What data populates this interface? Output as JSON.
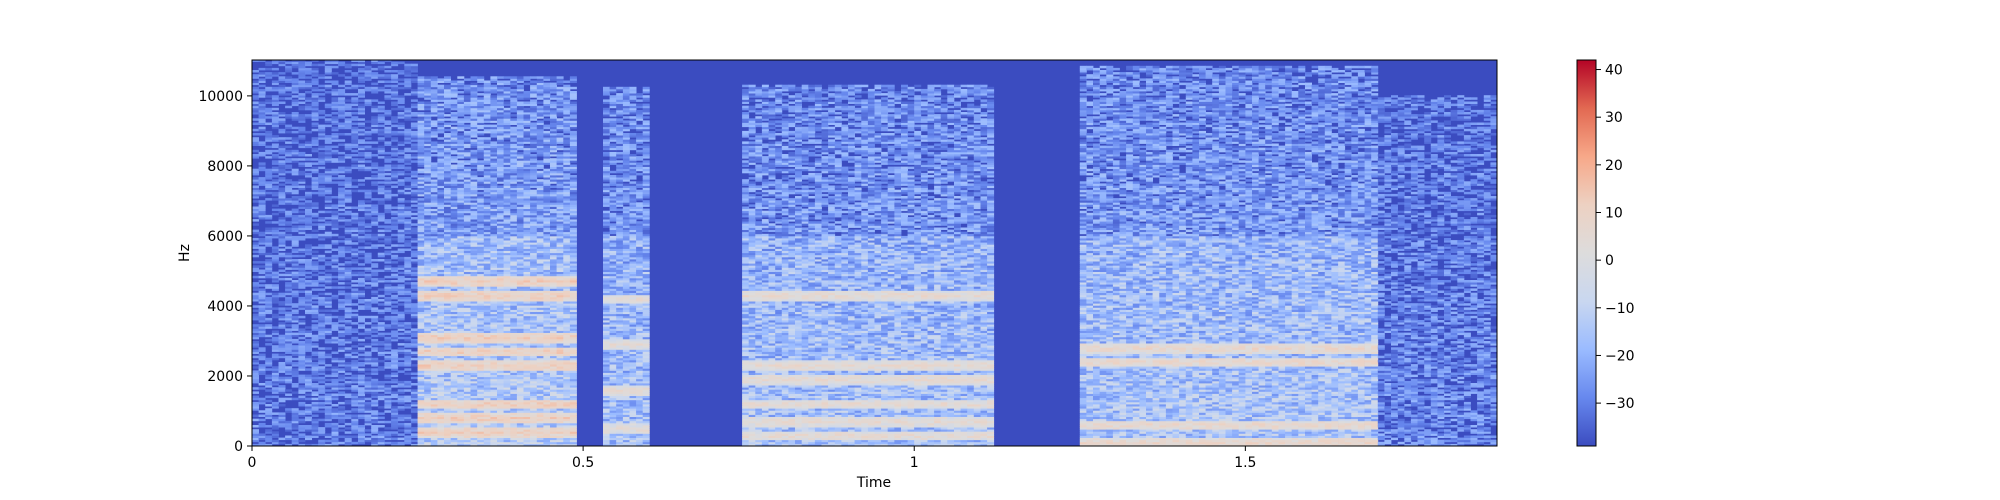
{
  "chart_data": {
    "type": "heatmap",
    "title": "",
    "xlabel": "Time",
    "ylabel": "Hz",
    "xlim": [
      0,
      1.88
    ],
    "ylim": [
      0,
      11025
    ],
    "x_ticks": [
      0,
      0.5,
      1,
      1.5
    ],
    "x_tick_labels": [
      "0",
      "0.5",
      "1",
      "1.5"
    ],
    "y_ticks": [
      0,
      2000,
      4000,
      6000,
      8000,
      10000
    ],
    "y_tick_labels": [
      "0",
      "2000",
      "4000",
      "6000",
      "8000",
      "10000"
    ],
    "colormap": "coolwarm",
    "colorbar": {
      "range": [
        -39,
        42
      ],
      "ticks": [
        40,
        30,
        20,
        10,
        0,
        -10,
        -20,
        -30
      ],
      "tick_labels": [
        "40",
        "30",
        "20",
        "10",
        "0",
        "−10",
        "−20",
        "−30"
      ],
      "colors": [
        "#3b4cc0",
        "#6788ee",
        "#9abbff",
        "#c9d7f0",
        "#dddcdc",
        "#edd1c2",
        "#f7a889",
        "#e26952",
        "#b40426"
      ]
    },
    "background_level_db": -39,
    "segments": [
      {
        "t_start": 0.0,
        "t_end": 0.25,
        "max_freq_hz": 11000,
        "level_db": -22,
        "description": "breathy noise"
      },
      {
        "t_start": 0.25,
        "t_end": 0.49,
        "max_freq_hz": 10500,
        "level_db": 12,
        "harmonics_hz": [
          400,
          800,
          1200,
          2300,
          2700,
          3100,
          4300,
          4700
        ]
      },
      {
        "t_start": 0.53,
        "t_end": 0.6,
        "max_freq_hz": 10200,
        "level_db": 5,
        "harmonics_hz": [
          500,
          1600,
          2900,
          4200
        ]
      },
      {
        "t_start": 0.74,
        "t_end": 1.12,
        "max_freq_hz": 10300,
        "level_db": 6,
        "harmonics_hz": [
          300,
          700,
          1200,
          1900,
          2300,
          4300
        ]
      },
      {
        "t_start": 1.25,
        "t_end": 1.7,
        "max_freq_hz": 10800,
        "level_db": 8,
        "harmonics_hz": [
          100,
          600,
          2400,
          2800
        ]
      },
      {
        "t_start": 1.7,
        "t_end": 1.88,
        "max_freq_hz": 10000,
        "level_db": -20,
        "description": "trailing noise"
      }
    ]
  }
}
